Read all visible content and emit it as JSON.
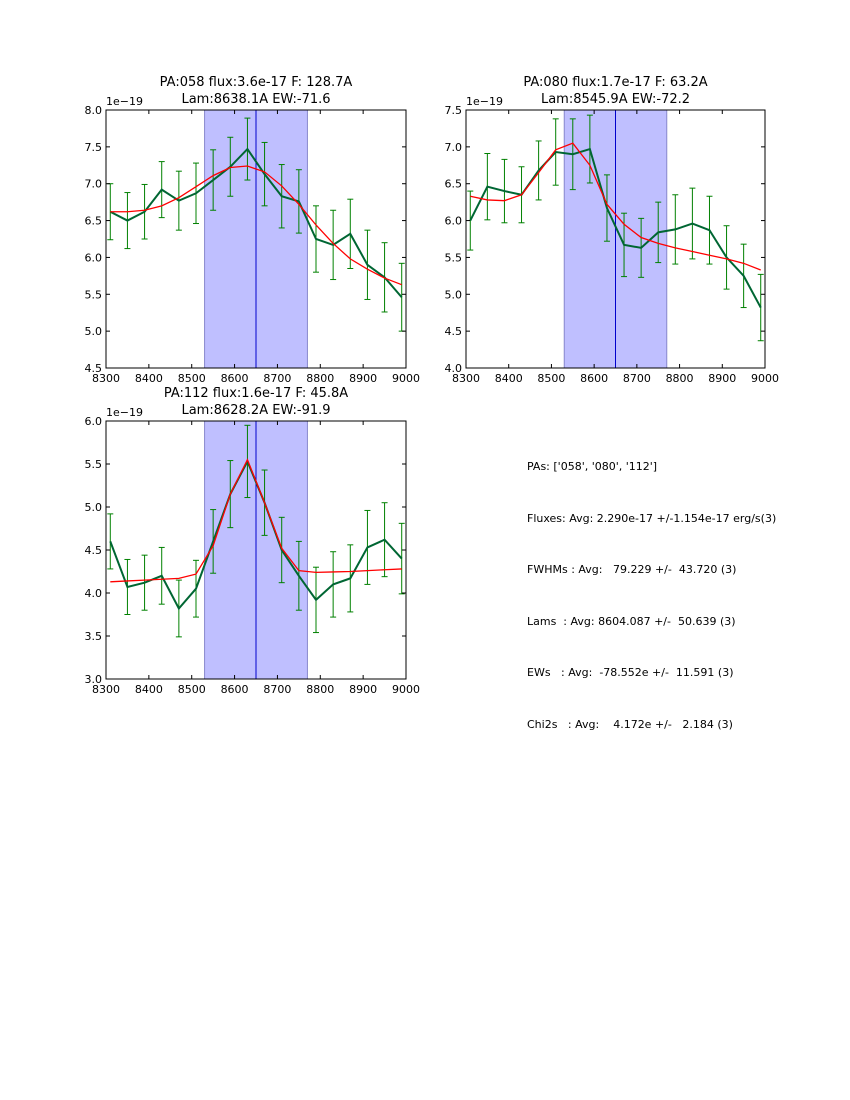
{
  "colors": {
    "observed": "#006633",
    "errorbar": "#008000",
    "fit": "#ff0000",
    "span": "#bfbfff",
    "span_edge": "#8888cc",
    "center_line": "#0000cc"
  },
  "chart_data": [
    {
      "type": "line",
      "title_line1": "PA:058 flux:3.6e-17 F: 128.7A",
      "title_line2": "Lam:8638.1A EW:-71.6",
      "offset_label": "1e−19",
      "xlim": [
        8300,
        9000
      ],
      "ylim": [
        4.5,
        8.0
      ],
      "xticks": [
        "8300",
        "8400",
        "8500",
        "8600",
        "8700",
        "8800",
        "8900",
        "9000"
      ],
      "yticks": [
        "4.5",
        "5.0",
        "5.5",
        "6.0",
        "6.5",
        "7.0",
        "7.5",
        "8.0"
      ],
      "span": [
        8530,
        8770
      ],
      "center": 8650,
      "x": [
        8310,
        8350,
        8390,
        8430,
        8470,
        8510,
        8550,
        8590,
        8630,
        8670,
        8710,
        8750,
        8790,
        8830,
        8870,
        8910,
        8950,
        8990
      ],
      "series": [
        {
          "name": "observed",
          "values": [
            6.62,
            6.5,
            6.62,
            6.92,
            6.77,
            6.87,
            7.05,
            7.23,
            7.47,
            7.13,
            6.83,
            6.76,
            6.25,
            6.17,
            6.32,
            5.9,
            5.73,
            5.46
          ],
          "errors": [
            0.38,
            0.38,
            0.37,
            0.38,
            0.4,
            0.41,
            0.41,
            0.4,
            0.42,
            0.43,
            0.43,
            0.43,
            0.45,
            0.47,
            0.47,
            0.47,
            0.47,
            0.46
          ]
        },
        {
          "name": "fit",
          "values": [
            6.62,
            6.62,
            6.64,
            6.7,
            6.81,
            6.96,
            7.11,
            7.22,
            7.24,
            7.16,
            6.97,
            6.72,
            6.44,
            6.19,
            5.98,
            5.84,
            5.72,
            5.63
          ]
        }
      ]
    },
    {
      "type": "line",
      "title_line1": "PA:080 flux:1.7e-17 F: 63.2A",
      "title_line2": "Lam:8545.9A EW:-72.2",
      "offset_label": "1e−19",
      "xlim": [
        8300,
        9000
      ],
      "ylim": [
        4.0,
        7.5
      ],
      "xticks": [
        "8300",
        "8400",
        "8500",
        "8600",
        "8700",
        "8800",
        "8900",
        "9000"
      ],
      "yticks": [
        "4.0",
        "4.5",
        "5.0",
        "5.5",
        "6.0",
        "6.5",
        "7.0",
        "7.5"
      ],
      "span": [
        8530,
        8770
      ],
      "center": 8650,
      "x": [
        8310,
        8350,
        8390,
        8430,
        8470,
        8510,
        8550,
        8590,
        8630,
        8670,
        8710,
        8750,
        8790,
        8830,
        8870,
        8910,
        8950,
        8990
      ],
      "series": [
        {
          "name": "observed",
          "values": [
            6.0,
            6.46,
            6.4,
            6.35,
            6.68,
            6.93,
            6.9,
            6.97,
            6.17,
            5.67,
            5.63,
            5.84,
            5.88,
            5.96,
            5.87,
            5.5,
            5.25,
            4.82
          ],
          "errors": [
            0.4,
            0.45,
            0.43,
            0.38,
            0.4,
            0.45,
            0.48,
            0.46,
            0.45,
            0.43,
            0.4,
            0.41,
            0.47,
            0.48,
            0.46,
            0.43,
            0.43,
            0.45
          ]
        },
        {
          "name": "fit",
          "values": [
            6.33,
            6.28,
            6.27,
            6.35,
            6.65,
            6.96,
            7.05,
            6.75,
            6.22,
            5.95,
            5.77,
            5.69,
            5.63,
            5.58,
            5.53,
            5.48,
            5.42,
            5.33
          ]
        }
      ]
    },
    {
      "type": "line",
      "title_line1": "PA:112 flux:1.6e-17 F: 45.8A",
      "title_line2": "Lam:8628.2A EW:-91.9",
      "offset_label": "1e−19",
      "xlim": [
        8300,
        9000
      ],
      "ylim": [
        3.0,
        6.0
      ],
      "xticks": [
        "8300",
        "8400",
        "8500",
        "8600",
        "8700",
        "8800",
        "8900",
        "9000"
      ],
      "yticks": [
        "3.0",
        "3.5",
        "4.0",
        "4.5",
        "5.0",
        "5.5",
        "6.0"
      ],
      "span": [
        8530,
        8770
      ],
      "center": 8650,
      "x": [
        8310,
        8350,
        8390,
        8430,
        8470,
        8510,
        8550,
        8590,
        8630,
        8670,
        8710,
        8750,
        8790,
        8830,
        8870,
        8910,
        8950,
        8990
      ],
      "series": [
        {
          "name": "observed",
          "values": [
            4.6,
            4.07,
            4.12,
            4.2,
            3.82,
            4.05,
            4.6,
            5.15,
            5.53,
            5.05,
            4.5,
            4.2,
            3.92,
            4.1,
            4.17,
            4.53,
            4.62,
            4.4
          ],
          "errors": [
            0.32,
            0.32,
            0.32,
            0.33,
            0.33,
            0.33,
            0.37,
            0.39,
            0.42,
            0.38,
            0.38,
            0.4,
            0.38,
            0.38,
            0.39,
            0.43,
            0.43,
            0.41
          ]
        },
        {
          "name": "fit",
          "values": [
            4.13,
            4.14,
            4.15,
            4.16,
            4.17,
            4.22,
            4.55,
            5.15,
            5.55,
            5.05,
            4.52,
            4.26,
            4.24,
            4.245,
            4.25,
            4.26,
            4.27,
            4.28
          ]
        }
      ]
    }
  ],
  "summary": {
    "pas": "PAs: ['058', '080', '112']",
    "fluxes": "Fluxes: Avg: 2.290e-17 +/-1.154e-17 erg/s(3)",
    "fwhms": "FWHMs : Avg:   79.229 +/-  43.720 (3)",
    "lams": "Lams  : Avg: 8604.087 +/-  50.639 (3)",
    "ews": "EWs   : Avg:  -78.552e +/-  11.591 (3)",
    "chi2s": "Chi2s   : Avg:    4.172e +/-   2.184 (3)"
  }
}
